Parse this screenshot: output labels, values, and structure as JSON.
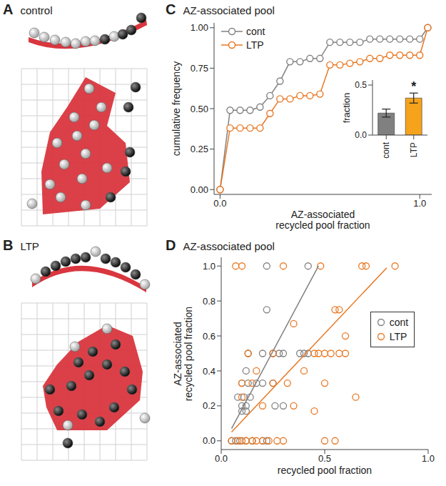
{
  "panels": [
    {
      "panel_label": "A",
      "title": "control"
    },
    {
      "panel_label": "B",
      "title": "LTP"
    }
  ],
  "chart_data": [
    {
      "type": "line",
      "panel_label": "C",
      "title": "AZ-associated pool",
      "x_label": "AZ-associated recycled pool fraction",
      "y_label": "cumulative frequency",
      "xlim": [
        -0.03,
        1.06
      ],
      "xticks": [
        {
          "value": 0,
          "label": "0.0"
        },
        {
          "value": 1,
          "label": "1.0"
        }
      ],
      "ylim": [
        -0.03,
        1.03
      ],
      "yticks": [
        {
          "value": 0,
          "label": "0.00"
        },
        {
          "value": 0.25,
          "label": "0.25"
        },
        {
          "value": 0.5,
          "label": "0.50"
        },
        {
          "value": 0.75,
          "label": "0.75"
        },
        {
          "value": 1,
          "label": "1.00"
        }
      ],
      "legend": "top-left",
      "marker": "open circle",
      "x": [
        0,
        0.05,
        0.1,
        0.15,
        0.2,
        0.25,
        0.3,
        0.35,
        0.4,
        0.45,
        0.5,
        0.55,
        0.6,
        0.65,
        0.7,
        0.75,
        0.8,
        0.85,
        0.9,
        0.95,
        1.0,
        1.04
      ],
      "series": [
        {
          "name": "cont",
          "color": "#808080",
          "values": [
            0,
            0.49,
            0.49,
            0.49,
            0.51,
            0.58,
            0.67,
            0.79,
            0.79,
            0.81,
            0.81,
            0.91,
            0.91,
            0.91,
            0.91,
            0.93,
            0.93,
            0.93,
            0.93,
            0.93,
            0.93,
            1.0
          ]
        },
        {
          "name": "LTP",
          "color": "#e87722",
          "values": [
            0,
            0.38,
            0.38,
            0.38,
            0.38,
            0.47,
            0.56,
            0.56,
            0.58,
            0.58,
            0.59,
            0.77,
            0.77,
            0.78,
            0.79,
            0.81,
            0.81,
            0.83,
            0.83,
            0.83,
            0.83,
            1.0
          ]
        }
      ]
    },
    {
      "type": "bar",
      "y_label": "fraction",
      "categories": [
        "cont",
        "LTP"
      ],
      "values": [
        0.22,
        0.37
      ],
      "errors": [
        0.04,
        0.05
      ],
      "colors": [
        "#808080",
        "#f5a31c"
      ],
      "ylim": [
        0,
        0.55
      ],
      "yticks": [
        {
          "value": 0,
          "label": "0.0"
        },
        {
          "value": 0.5,
          "label": "0.5"
        }
      ],
      "annotations": [
        {
          "text": "*",
          "category": "LTP"
        }
      ]
    },
    {
      "type": "scatter",
      "panel_label": "D",
      "title": "AZ-associated pool",
      "x_label": "recycled pool fraction",
      "y_label": "AZ-associated recycled pool fraction",
      "xlim": [
        0,
        1
      ],
      "xticks": [
        {
          "value": 0,
          "label": "0.0"
        },
        0.5,
        {
          "value": 1,
          "label": "1.0"
        }
      ],
      "ylim": [
        -0.05,
        1.05
      ],
      "yticks": [
        {
          "value": 0,
          "label": "0.0"
        },
        0.2,
        0.4,
        0.6,
        0.8,
        {
          "value": 1,
          "label": "1.0"
        }
      ],
      "legend": "right",
      "marker": "open circle",
      "series": [
        {
          "name": "cont",
          "color": "#808080",
          "x": [
            0.22,
            0.42,
            0.22,
            0.13,
            0.2,
            0.25,
            0.28,
            0.3,
            0.38,
            0.4,
            0.42,
            0.12,
            0.1,
            0.13,
            0.17,
            0.2,
            0.25,
            0.08,
            0.11,
            0.14,
            0.1,
            0.12,
            0.26,
            0.3,
            0.1,
            0.12,
            0.05,
            0.07,
            0.09,
            0.12,
            0.15,
            0.2,
            0.22
          ],
          "values": [
            1,
            1,
            0.75,
            0.5,
            0.5,
            0.5,
            0.5,
            0.5,
            0.5,
            0.5,
            0.5,
            0.4,
            0.33,
            0.33,
            0.33,
            0.33,
            0.33,
            0.25,
            0.25,
            0.25,
            0.2,
            0.2,
            0.2,
            0.2,
            0.17,
            0.17,
            0,
            0,
            0,
            0,
            0,
            0,
            0
          ],
          "fit": {
            "x": [
              0.05,
              0.47
            ],
            "values": [
              0.07,
              1.0
            ]
          }
        },
        {
          "name": "LTP",
          "color": "#e87722",
          "x": [
            0.07,
            0.1,
            0.3,
            0.48,
            0.68,
            0.7,
            0.84,
            0.55,
            0.57,
            0.35,
            0.6,
            0.25,
            0.45,
            0.47,
            0.5,
            0.53,
            0.57,
            0.6,
            0.13,
            0.17,
            0.4,
            0.1,
            0.15,
            0.25,
            0.32,
            0.5,
            0.1,
            0.65,
            0.2,
            0.35,
            0.45,
            0.05,
            0.08,
            0.1,
            0.12,
            0.15,
            0.17,
            0.2,
            0.23,
            0.27,
            0.3,
            0.5,
            0.55
          ],
          "values": [
            1,
            1,
            1,
            1,
            1,
            1,
            1,
            0.75,
            0.75,
            0.67,
            0.6,
            0.5,
            0.5,
            0.5,
            0.5,
            0.5,
            0.5,
            0.5,
            0.5,
            0.4,
            0.4,
            0.33,
            0.33,
            0.33,
            0.33,
            0.33,
            0.25,
            0.25,
            0.2,
            0.2,
            0.17,
            0,
            0,
            0,
            0,
            0,
            0,
            0,
            0,
            0,
            0,
            0,
            0
          ],
          "fit": {
            "x": [
              0.05,
              0.8
            ],
            "values": [
              0.05,
              0.99
            ]
          }
        }
      ]
    }
  ]
}
